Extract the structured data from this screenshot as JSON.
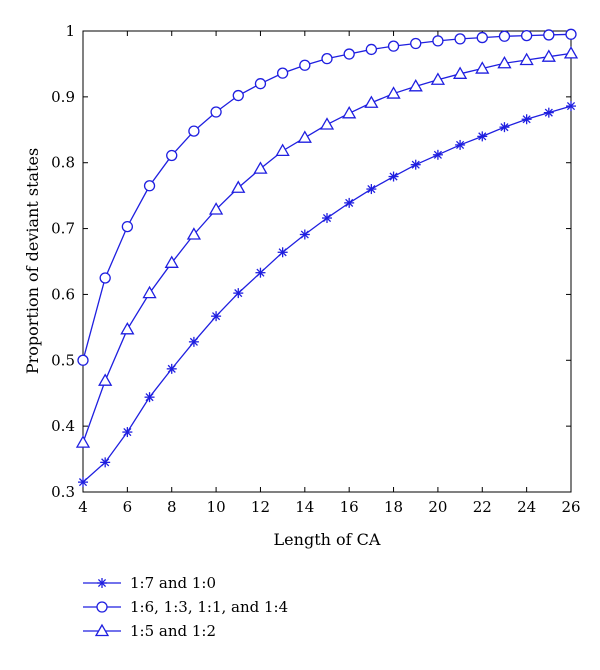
{
  "chart_data": {
    "type": "line",
    "xlabel": "Length of CA",
    "ylabel": "Proportion of deviant states",
    "xlim": [
      4,
      26
    ],
    "ylim": [
      0.3,
      1.0
    ],
    "xticks": [
      4,
      6,
      8,
      10,
      12,
      14,
      16,
      18,
      20,
      22,
      24,
      26
    ],
    "yticks": [
      0.3,
      0.4,
      0.5,
      0.6,
      0.7,
      0.8,
      0.9,
      1.0
    ],
    "ytick_labels": [
      "0.3",
      "0.4",
      "0.5",
      "0.6",
      "0.7",
      "0.8",
      "0.9",
      "1"
    ],
    "grid": false,
    "legend_position": "below",
    "line_color": "#1f1fe0",
    "x": [
      4,
      5,
      6,
      7,
      8,
      9,
      10,
      11,
      12,
      13,
      14,
      15,
      16,
      17,
      18,
      19,
      20,
      21,
      22,
      23,
      24,
      25,
      26
    ],
    "series": [
      {
        "name": "1:7 and 1:0",
        "marker": "star",
        "values": [
          0.315,
          0.345,
          0.391,
          0.444,
          0.487,
          0.528,
          0.567,
          0.602,
          0.633,
          0.664,
          0.691,
          0.716,
          0.739,
          0.76,
          0.779,
          0.797,
          0.812,
          0.827,
          0.84,
          0.854,
          0.866,
          0.876,
          0.886
        ]
      },
      {
        "name": "1:6, 1:3, 1:1, and 1:4",
        "marker": "circle",
        "values": [
          0.5,
          0.625,
          0.703,
          0.765,
          0.811,
          0.848,
          0.877,
          0.902,
          0.92,
          0.936,
          0.948,
          0.958,
          0.965,
          0.972,
          0.977,
          0.981,
          0.985,
          0.988,
          0.99,
          0.992,
          0.993,
          0.994,
          0.995
        ]
      },
      {
        "name": "1:5 and 1:2",
        "marker": "triangle",
        "values": [
          0.375,
          0.469,
          0.547,
          0.602,
          0.648,
          0.691,
          0.729,
          0.762,
          0.791,
          0.818,
          0.838,
          0.858,
          0.875,
          0.891,
          0.905,
          0.916,
          0.926,
          0.935,
          0.943,
          0.951,
          0.956,
          0.961,
          0.966
        ]
      }
    ]
  }
}
